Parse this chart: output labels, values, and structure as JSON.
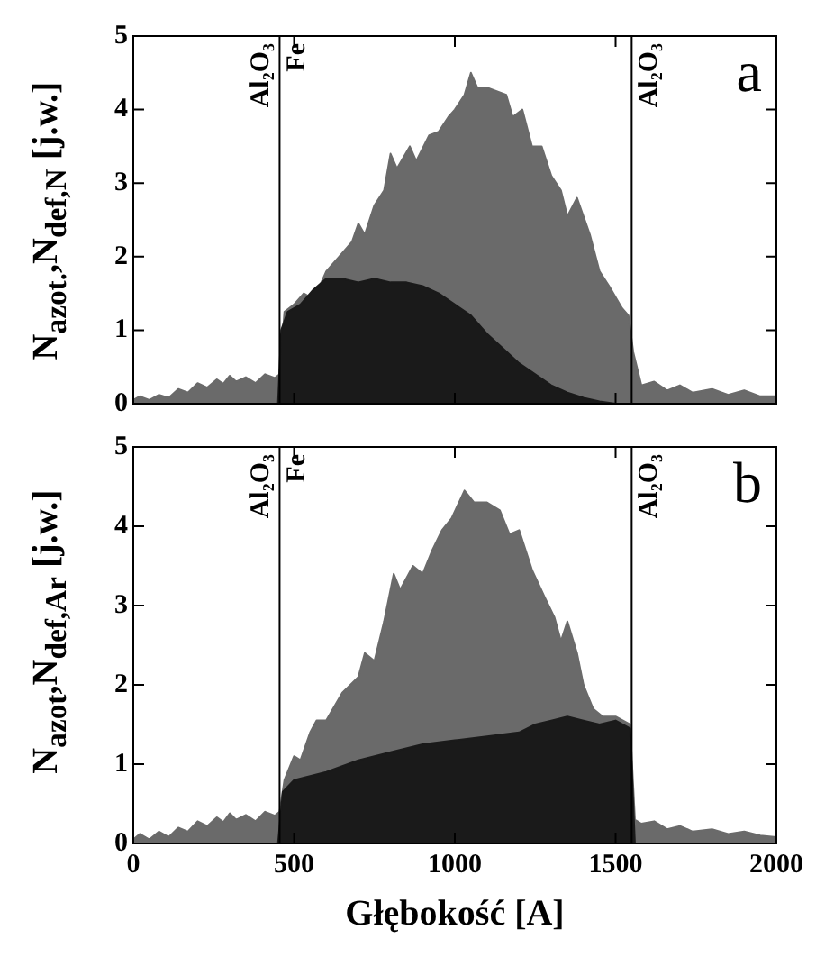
{
  "chart_data": [
    {
      "type": "area",
      "title": "a",
      "ylabel": "N$_{azot.}$,N$_{def,N}$ [j.w.]",
      "xlim": [
        0,
        2000
      ],
      "xticks": [
        0,
        500,
        1000,
        1500,
        2000
      ],
      "ylim": [
        0,
        5
      ],
      "yticks": [
        0,
        1,
        2,
        3,
        4,
        5
      ],
      "tick_labels": "y",
      "grid": false,
      "legend": false,
      "ref_lines": [
        {
          "axis": "x",
          "value": 455
        },
        {
          "axis": "x",
          "value": 1550
        }
      ],
      "annotations": [
        "Al₂O₃",
        "Fe",
        "Al₂O₃"
      ],
      "series": [
        {
          "color": "#6a6a6a",
          "x": [
            0,
            20,
            50,
            80,
            110,
            140,
            170,
            200,
            230,
            260,
            280,
            300,
            320,
            350,
            380,
            410,
            440,
            455,
            470,
            500,
            530,
            550,
            580,
            600,
            640,
            680,
            700,
            720,
            750,
            780,
            800,
            820,
            860,
            880,
            920,
            950,
            980,
            1000,
            1030,
            1050,
            1070,
            1100,
            1130,
            1160,
            1180,
            1210,
            1240,
            1270,
            1300,
            1330,
            1350,
            1380,
            1420,
            1450,
            1480,
            1520,
            1540,
            1555,
            1580,
            1620,
            1660,
            1700,
            1740,
            1800,
            1850,
            1900,
            1950,
            2000
          ],
          "values": [
            0.05,
            0.1,
            0.05,
            0.12,
            0.08,
            0.2,
            0.15,
            0.28,
            0.22,
            0.33,
            0.27,
            0.38,
            0.3,
            0.36,
            0.28,
            0.4,
            0.35,
            0.4,
            1.25,
            1.35,
            1.5,
            1.45,
            1.6,
            1.8,
            2.0,
            2.2,
            2.45,
            2.3,
            2.7,
            2.9,
            3.4,
            3.2,
            3.5,
            3.3,
            3.65,
            3.7,
            3.9,
            4.0,
            4.2,
            4.5,
            4.3,
            4.3,
            4.25,
            4.2,
            3.9,
            4.0,
            3.5,
            3.5,
            3.1,
            2.9,
            2.55,
            2.8,
            2.3,
            1.8,
            1.6,
            1.3,
            1.2,
            0.7,
            0.25,
            0.3,
            0.18,
            0.25,
            0.15,
            0.2,
            0.12,
            0.18,
            0.1,
            0.1
          ]
        },
        {
          "color": "#1a1a1a",
          "x": [
            0,
            450,
            460,
            480,
            520,
            560,
            600,
            650,
            700,
            750,
            800,
            850,
            900,
            950,
            1000,
            1050,
            1100,
            1150,
            1200,
            1250,
            1300,
            1350,
            1400,
            1450,
            1500,
            2000
          ],
          "values": [
            0,
            0,
            1.0,
            1.25,
            1.35,
            1.55,
            1.7,
            1.7,
            1.65,
            1.7,
            1.65,
            1.65,
            1.6,
            1.5,
            1.35,
            1.2,
            0.95,
            0.75,
            0.55,
            0.4,
            0.25,
            0.15,
            0.08,
            0.03,
            0,
            0
          ]
        }
      ]
    },
    {
      "type": "area",
      "title": "b",
      "ylabel": "N$_{azot}$,N$_{def,Ar}$ [j.w.]",
      "xlabel": "Głębokość [A]",
      "xlim": [
        0,
        2000
      ],
      "xticks": [
        0,
        500,
        1000,
        1500,
        2000
      ],
      "ylim": [
        0,
        5
      ],
      "yticks": [
        0,
        1,
        2,
        3,
        4,
        5
      ],
      "grid": false,
      "legend": false,
      "ref_lines": [
        {
          "axis": "x",
          "value": 455
        },
        {
          "axis": "x",
          "value": 1550
        }
      ],
      "annotations": [
        "Al₂O₃",
        "Fe",
        "Al₂O₃"
      ],
      "series": [
        {
          "color": "#6a6a6a",
          "x": [
            0,
            20,
            50,
            80,
            110,
            140,
            170,
            200,
            230,
            260,
            280,
            300,
            320,
            350,
            380,
            410,
            440,
            455,
            470,
            500,
            520,
            550,
            570,
            600,
            650,
            700,
            720,
            750,
            780,
            810,
            830,
            870,
            900,
            930,
            960,
            990,
            1030,
            1060,
            1100,
            1140,
            1170,
            1200,
            1240,
            1280,
            1310,
            1330,
            1350,
            1380,
            1400,
            1430,
            1460,
            1500,
            1545,
            1560,
            1580,
            1620,
            1660,
            1700,
            1740,
            1800,
            1850,
            1900,
            1950,
            2000
          ],
          "values": [
            0.05,
            0.12,
            0.05,
            0.15,
            0.08,
            0.2,
            0.15,
            0.28,
            0.22,
            0.33,
            0.27,
            0.38,
            0.3,
            0.36,
            0.28,
            0.4,
            0.35,
            0.4,
            0.8,
            1.1,
            1.05,
            1.4,
            1.55,
            1.55,
            1.9,
            2.1,
            2.4,
            2.3,
            2.8,
            3.4,
            3.2,
            3.5,
            3.4,
            3.7,
            3.95,
            4.1,
            4.45,
            4.3,
            4.3,
            4.2,
            3.9,
            3.95,
            3.45,
            3.1,
            2.85,
            2.55,
            2.8,
            2.4,
            2.0,
            1.7,
            1.6,
            1.6,
            1.5,
            0.3,
            0.25,
            0.28,
            0.18,
            0.22,
            0.15,
            0.18,
            0.12,
            0.15,
            0.1,
            0.08
          ]
        },
        {
          "color": "#1a1a1a",
          "x": [
            0,
            450,
            465,
            500,
            600,
            700,
            800,
            900,
            1000,
            1100,
            1200,
            1250,
            1300,
            1350,
            1400,
            1450,
            1500,
            1545,
            1560,
            2000
          ],
          "values": [
            0,
            0,
            0.65,
            0.8,
            0.9,
            1.05,
            1.15,
            1.25,
            1.3,
            1.35,
            1.4,
            1.5,
            1.55,
            1.6,
            1.55,
            1.5,
            1.55,
            1.45,
            0,
            0
          ]
        }
      ]
    }
  ]
}
